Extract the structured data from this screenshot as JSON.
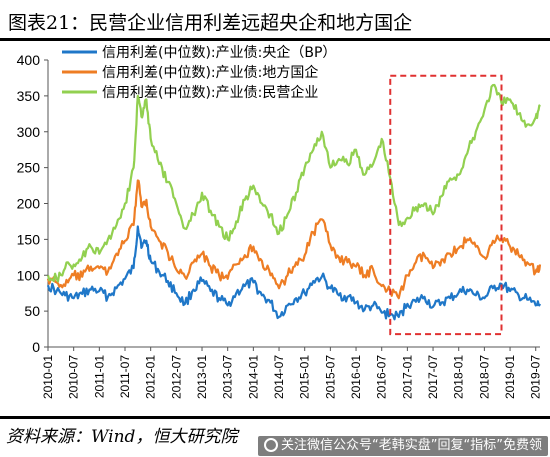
{
  "header": {
    "title": "图表21：民营企业信用利差远超央企和地方国企"
  },
  "footer": {
    "source": "资料来源：Wind，恒大研究院"
  },
  "watermark": {
    "text": "关注微信公众号“老韩实盘”回复“指标”免费领",
    "icon": "wechat-icon"
  },
  "chart_data": {
    "type": "line",
    "title": "",
    "xlabel": "",
    "ylabel": "",
    "ylim": [
      0,
      400
    ],
    "y_ticks": [
      0,
      50,
      100,
      150,
      200,
      250,
      300,
      350,
      400
    ],
    "xlim": [
      "2010-01",
      "2019-08"
    ],
    "x_ticks": [
      "2010-01",
      "2010-07",
      "2011-01",
      "2011-07",
      "2012-01",
      "2012-07",
      "2013-01",
      "2013-07",
      "2014-01",
      "2014-07",
      "2015-01",
      "2015-07",
      "2016-01",
      "2016-07",
      "2017-01",
      "2017-07",
      "2018-01",
      "2018-07",
      "2019-01",
      "2019-07"
    ],
    "grid": false,
    "legend": "top-left",
    "highlight_box": {
      "x_from": "2016-09",
      "x_to": "2018-11",
      "y_from": 18,
      "y_to": 378,
      "color": "#e03030",
      "style": "dashed"
    },
    "series": [
      {
        "name": "信用利差(中位数):产业债:央企（BP）",
        "color": "#1f77c8",
        "points": [
          [
            "2010-01",
            86
          ],
          [
            "2010-03",
            78
          ],
          [
            "2010-05",
            72
          ],
          [
            "2010-07",
            68
          ],
          [
            "2010-09",
            74
          ],
          [
            "2010-11",
            80
          ],
          [
            "2011-01",
            78
          ],
          [
            "2011-03",
            70
          ],
          [
            "2011-05",
            82
          ],
          [
            "2011-07",
            95
          ],
          [
            "2011-09",
            110
          ],
          [
            "2011-10",
            168
          ],
          [
            "2011-11",
            140
          ],
          [
            "2011-12",
            148
          ],
          [
            "2012-01",
            120
          ],
          [
            "2012-03",
            105
          ],
          [
            "2012-05",
            92
          ],
          [
            "2012-07",
            75
          ],
          [
            "2012-09",
            60
          ],
          [
            "2012-11",
            80
          ],
          [
            "2013-01",
            92
          ],
          [
            "2013-03",
            78
          ],
          [
            "2013-05",
            68
          ],
          [
            "2013-07",
            58
          ],
          [
            "2013-09",
            75
          ],
          [
            "2013-11",
            85
          ],
          [
            "2014-01",
            90
          ],
          [
            "2014-03",
            72
          ],
          [
            "2014-05",
            62
          ],
          [
            "2014-07",
            42
          ],
          [
            "2014-09",
            58
          ],
          [
            "2014-11",
            68
          ],
          [
            "2015-01",
            75
          ],
          [
            "2015-03",
            92
          ],
          [
            "2015-05",
            98
          ],
          [
            "2015-07",
            82
          ],
          [
            "2015-09",
            72
          ],
          [
            "2015-11",
            70
          ],
          [
            "2016-01",
            62
          ],
          [
            "2016-03",
            52
          ],
          [
            "2016-05",
            58
          ],
          [
            "2016-07",
            48
          ],
          [
            "2016-09",
            45
          ],
          [
            "2016-11",
            42
          ],
          [
            "2017-01",
            60
          ],
          [
            "2017-03",
            63
          ],
          [
            "2017-05",
            70
          ],
          [
            "2017-07",
            56
          ],
          [
            "2017-09",
            62
          ],
          [
            "2017-11",
            68
          ],
          [
            "2018-01",
            76
          ],
          [
            "2018-03",
            80
          ],
          [
            "2018-05",
            72
          ],
          [
            "2018-07",
            68
          ],
          [
            "2018-09",
            82
          ],
          [
            "2018-11",
            88
          ],
          [
            "2019-01",
            78
          ],
          [
            "2019-03",
            72
          ],
          [
            "2019-05",
            66
          ],
          [
            "2019-07",
            58
          ],
          [
            "2019-08",
            60
          ]
        ]
      },
      {
        "name": "信用利差(中位数):产业债:地方国企",
        "color": "#ee7d24",
        "points": [
          [
            "2010-01",
            95
          ],
          [
            "2010-03",
            90
          ],
          [
            "2010-05",
            85
          ],
          [
            "2010-07",
            100
          ],
          [
            "2010-09",
            98
          ],
          [
            "2010-11",
            112
          ],
          [
            "2011-01",
            110
          ],
          [
            "2011-03",
            105
          ],
          [
            "2011-05",
            130
          ],
          [
            "2011-07",
            148
          ],
          [
            "2011-09",
            170
          ],
          [
            "2011-10",
            232
          ],
          [
            "2011-11",
            195
          ],
          [
            "2011-12",
            205
          ],
          [
            "2012-01",
            168
          ],
          [
            "2012-03",
            148
          ],
          [
            "2012-05",
            132
          ],
          [
            "2012-07",
            108
          ],
          [
            "2012-09",
            98
          ],
          [
            "2012-11",
            118
          ],
          [
            "2013-01",
            130
          ],
          [
            "2013-03",
            112
          ],
          [
            "2013-05",
            100
          ],
          [
            "2013-07",
            95
          ],
          [
            "2013-09",
            115
          ],
          [
            "2013-11",
            128
          ],
          [
            "2014-01",
            140
          ],
          [
            "2014-03",
            120
          ],
          [
            "2014-05",
            100
          ],
          [
            "2014-07",
            82
          ],
          [
            "2014-09",
            100
          ],
          [
            "2014-11",
            118
          ],
          [
            "2015-01",
            128
          ],
          [
            "2015-03",
            160
          ],
          [
            "2015-05",
            178
          ],
          [
            "2015-07",
            142
          ],
          [
            "2015-09",
            125
          ],
          [
            "2015-11",
            118
          ],
          [
            "2016-01",
            112
          ],
          [
            "2016-03",
            100
          ],
          [
            "2016-05",
            108
          ],
          [
            "2016-07",
            85
          ],
          [
            "2016-09",
            78
          ],
          [
            "2016-11",
            68
          ],
          [
            "2017-01",
            100
          ],
          [
            "2017-03",
            118
          ],
          [
            "2017-05",
            128
          ],
          [
            "2017-07",
            110
          ],
          [
            "2017-09",
            122
          ],
          [
            "2017-11",
            130
          ],
          [
            "2018-01",
            138
          ],
          [
            "2018-03",
            150
          ],
          [
            "2018-05",
            140
          ],
          [
            "2018-07",
            125
          ],
          [
            "2018-09",
            148
          ],
          [
            "2018-11",
            152
          ],
          [
            "2019-01",
            140
          ],
          [
            "2019-03",
            128
          ],
          [
            "2019-05",
            118
          ],
          [
            "2019-07",
            105
          ],
          [
            "2019-08",
            115
          ]
        ]
      },
      {
        "name": "信用利差(中位数):产业债:民营企业",
        "color": "#92d050",
        "points": [
          [
            "2010-01",
            100
          ],
          [
            "2010-03",
            95
          ],
          [
            "2010-05",
            110
          ],
          [
            "2010-07",
            115
          ],
          [
            "2010-09",
            125
          ],
          [
            "2010-11",
            140
          ],
          [
            "2011-01",
            130
          ],
          [
            "2011-03",
            150
          ],
          [
            "2011-05",
            170
          ],
          [
            "2011-07",
            200
          ],
          [
            "2011-09",
            250
          ],
          [
            "2011-10",
            350
          ],
          [
            "2011-11",
            320
          ],
          [
            "2011-12",
            345
          ],
          [
            "2012-01",
            290
          ],
          [
            "2012-03",
            255
          ],
          [
            "2012-05",
            230
          ],
          [
            "2012-07",
            200
          ],
          [
            "2012-09",
            165
          ],
          [
            "2012-11",
            185
          ],
          [
            "2013-01",
            215
          ],
          [
            "2013-03",
            190
          ],
          [
            "2013-05",
            168
          ],
          [
            "2013-07",
            150
          ],
          [
            "2013-09",
            175
          ],
          [
            "2013-11",
            205
          ],
          [
            "2014-01",
            225
          ],
          [
            "2014-03",
            200
          ],
          [
            "2014-05",
            185
          ],
          [
            "2014-07",
            158
          ],
          [
            "2014-09",
            185
          ],
          [
            "2014-11",
            215
          ],
          [
            "2015-01",
            250
          ],
          [
            "2015-03",
            275
          ],
          [
            "2015-05",
            300
          ],
          [
            "2015-07",
            250
          ],
          [
            "2015-09",
            262
          ],
          [
            "2015-11",
            255
          ],
          [
            "2016-01",
            275
          ],
          [
            "2016-03",
            240
          ],
          [
            "2016-05",
            255
          ],
          [
            "2016-07",
            290
          ],
          [
            "2016-09",
            235
          ],
          [
            "2016-11",
            170
          ],
          [
            "2017-01",
            180
          ],
          [
            "2017-03",
            195
          ],
          [
            "2017-05",
            200
          ],
          [
            "2017-07",
            185
          ],
          [
            "2017-09",
            210
          ],
          [
            "2017-11",
            235
          ],
          [
            "2018-01",
            240
          ],
          [
            "2018-03",
            270
          ],
          [
            "2018-05",
            300
          ],
          [
            "2018-07",
            330
          ],
          [
            "2018-09",
            365
          ],
          [
            "2018-11",
            340
          ],
          [
            "2019-01",
            345
          ],
          [
            "2019-03",
            325
          ],
          [
            "2019-05",
            310
          ],
          [
            "2019-07",
            320
          ],
          [
            "2019-08",
            335
          ]
        ]
      }
    ]
  }
}
